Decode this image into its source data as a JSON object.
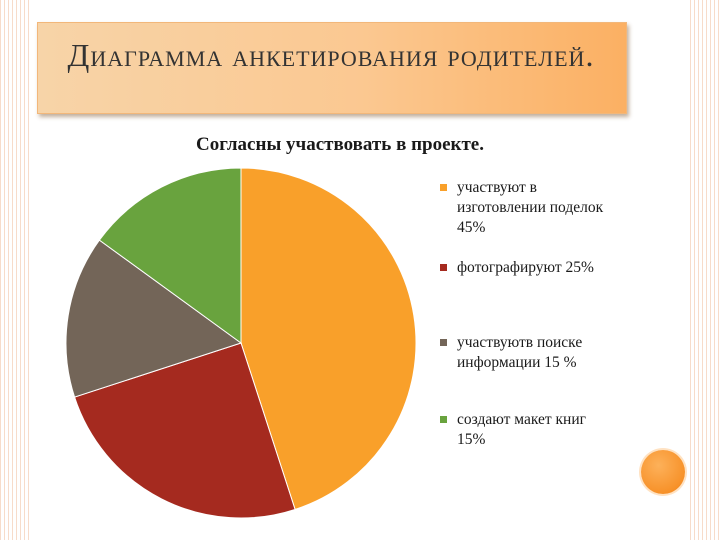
{
  "slide": {
    "title": "Диаграмма анкетирования родителей."
  },
  "chart_data": {
    "type": "pie",
    "title": "Согласны участвовать в проекте.",
    "categories": [
      "участвуют в изготовлении поделок 45%",
      " фотографируют 25%",
      "участвуютв поиске информации  15 %",
      "создают макет книг 15%"
    ],
    "values": [
      45,
      25,
      15,
      15
    ],
    "colors": [
      "#f9a02a",
      "#a52a1f",
      "#736558",
      "#69a33e"
    ],
    "legend": "right",
    "start_angle_deg": 0,
    "direction": "clockwise"
  },
  "decor": {
    "accent_color": "#f7922a",
    "icon": "orange-circle-icon"
  }
}
